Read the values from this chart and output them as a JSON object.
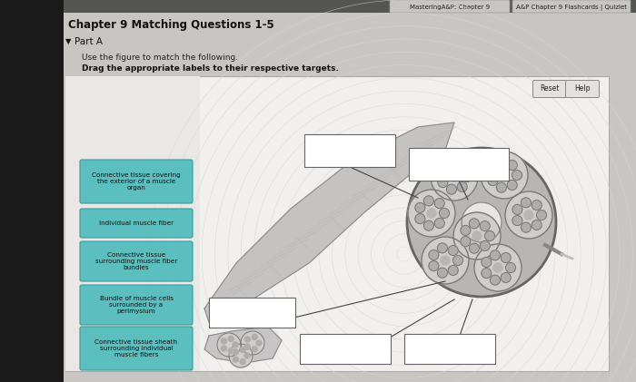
{
  "title": "Chapter 9 Matching Questions 1-5",
  "subtitle": "Part A",
  "instruction1": "Use the figure to match the following.",
  "instruction2": "Drag the appropriate labels to their respective targets.",
  "tab1": "MasteringA&P: Chapter 9",
  "tab2": "A&P Chapter 9 Flashcards | Quizlet",
  "labels": [
    "Connective tissue covering\nthe exterior of a muscle\norgan",
    "Individual muscle fiber",
    "Connective tissue\nsurrounding muscle fiber\nbundles",
    "Bundle of muscle cells\nsurrounded by a\nperimysium",
    "Connective tissue sheath\nsurrounding individual\nmuscle fibers"
  ],
  "label_color": "#5BBFBF",
  "label_edge_color": "#3a9a9a",
  "label_text_color": "#111111",
  "page_bg": "#b0aeac",
  "content_bg": "#c8c6c4",
  "panel_bg": "#f0eeec",
  "nav_bg": "#888886",
  "reset_btn": "Reset",
  "help_btn": "Help",
  "white": "#ffffff",
  "box_edge": "#666666"
}
